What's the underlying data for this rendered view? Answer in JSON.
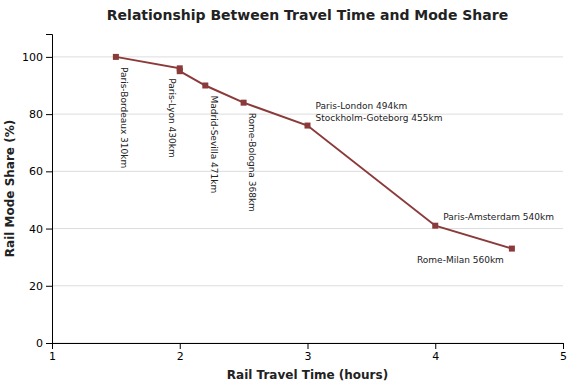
{
  "chart_data": {
    "type": "line",
    "title": "Relationship Between Travel Time and Mode Share",
    "xlabel": "Rail Travel Time (hours)",
    "ylabel": "Rail Mode Share (%)",
    "x": [
      1.5,
      2.0,
      2.0,
      2.2,
      2.5,
      3.0,
      4.0,
      4.6
    ],
    "values": [
      100,
      96,
      95,
      90,
      84,
      76,
      41,
      33
    ],
    "color": "#8B3A3A",
    "marker": "square",
    "xlim": [
      1,
      5
    ],
    "ylim": [
      0,
      108
    ],
    "xticks": [
      1,
      2,
      3,
      4,
      5
    ],
    "yticks": [
      0,
      20,
      40,
      60,
      80,
      100
    ],
    "grid": true,
    "annotations": [
      {
        "text": "Paris-Bordeaux 310km",
        "x": 1.5,
        "y": 100
      },
      {
        "text": "Paris-Lyon 430km",
        "x": 2.0,
        "y": 96
      },
      {
        "text": "Madrid-Sevilla 471km",
        "x": 2.2,
        "y": 90
      },
      {
        "text": "Rome-Bologna 368km",
        "x": 2.5,
        "y": 84
      },
      {
        "text": "Paris-London 494km",
        "x": 3.0,
        "y": 76
      },
      {
        "text": "Stockholm-Goteborg 455km",
        "x": 3.0,
        "y": 76
      },
      {
        "text": "Paris-Amsterdam 540km",
        "x": 4.0,
        "y": 41
      },
      {
        "text": "Rome-Milan 560km",
        "x": 4.6,
        "y": 33
      }
    ]
  }
}
